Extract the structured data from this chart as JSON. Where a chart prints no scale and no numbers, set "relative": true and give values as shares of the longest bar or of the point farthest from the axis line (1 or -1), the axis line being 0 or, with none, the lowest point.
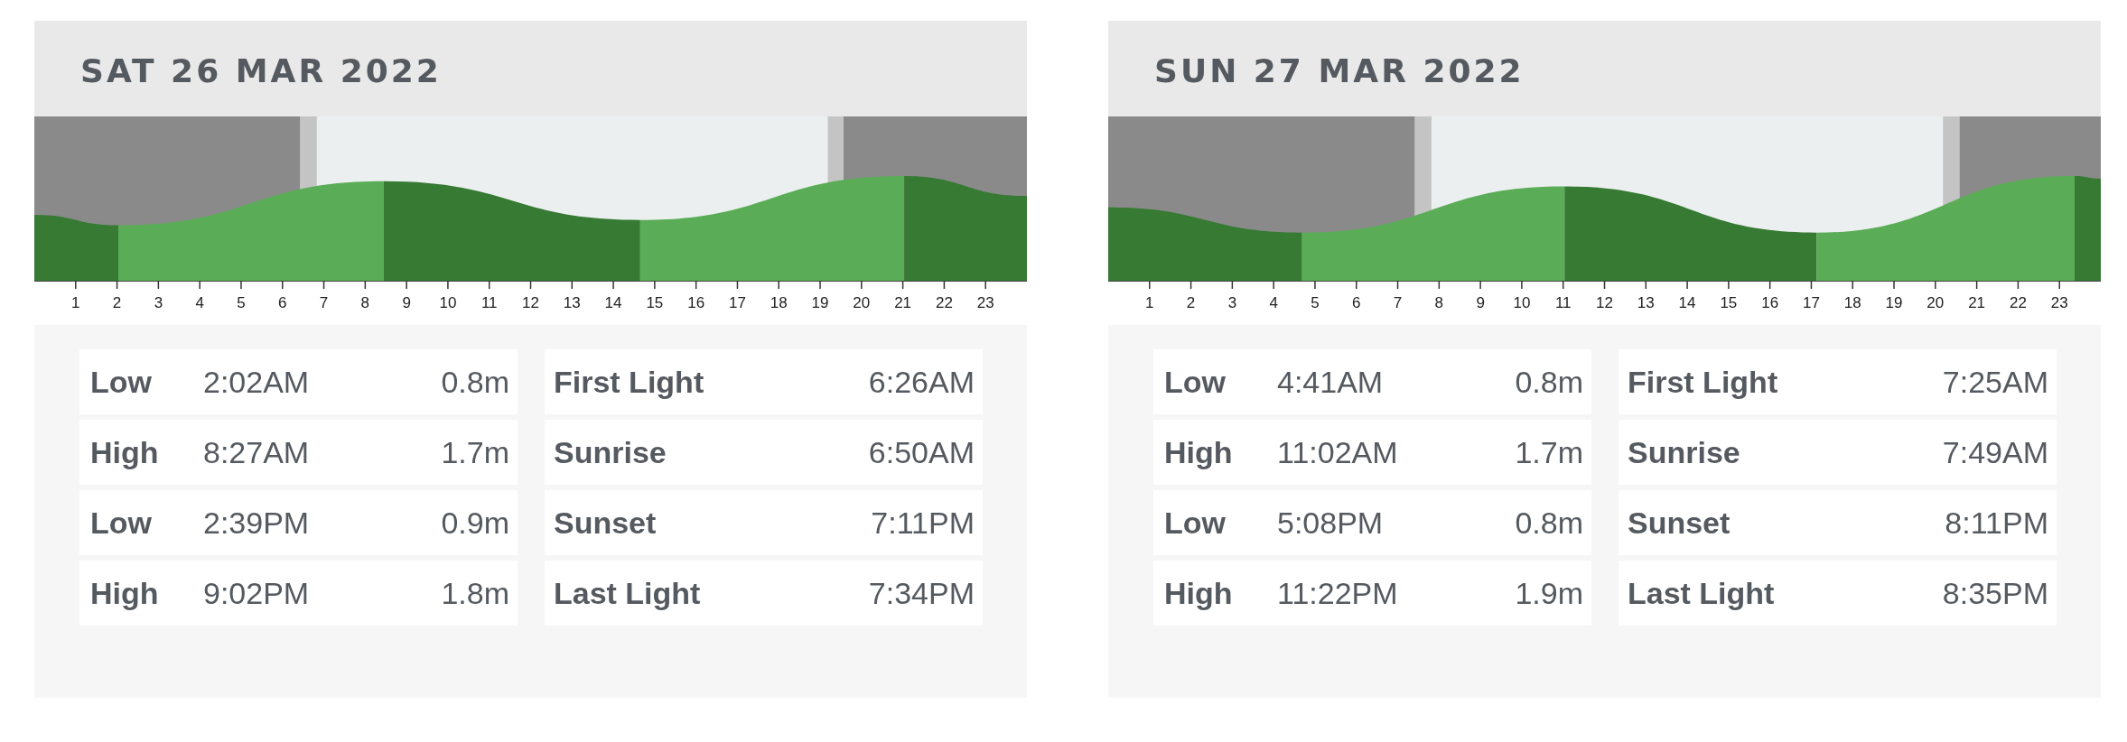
{
  "chart_data": [
    {
      "type": "area",
      "title": "SAT 26 MAR 2022",
      "relative": true,
      "xlim": [
        0,
        24
      ],
      "xticks": [
        1,
        2,
        3,
        4,
        5,
        6,
        7,
        8,
        9,
        10,
        11,
        12,
        13,
        14,
        15,
        16,
        17,
        18,
        19,
        20,
        21,
        22,
        23
      ],
      "grid": false,
      "tick_labels": "x",
      "series": [
        {
          "color": "#367a33",
          "x": [
            0,
            2.033
          ],
          "values": [
            0.63,
            0.53
          ]
        },
        {
          "color": "#5aad56",
          "x": [
            2.033,
            8.45
          ],
          "values": [
            0.53,
            0.95
          ]
        },
        {
          "color": "#367a33",
          "x": [
            8.45,
            14.65
          ],
          "values": [
            0.95,
            0.58
          ]
        },
        {
          "color": "#5aad56",
          "x": [
            14.65,
            21.033
          ],
          "values": [
            0.58,
            1
          ]
        },
        {
          "color": "#367a33",
          "x": [
            21.033,
            24
          ],
          "values": [
            1,
            0.81
          ]
        }
      ],
      "bands": [
        {
          "axis": "x",
          "from": 0,
          "to": 6.433,
          "color": "#8a8a8a"
        },
        {
          "axis": "x",
          "from": 6.433,
          "to": 6.833,
          "color": "#c4c4c4"
        },
        {
          "axis": "x",
          "from": 6.833,
          "to": 19.183,
          "color": "#eceff0"
        },
        {
          "axis": "x",
          "from": 19.183,
          "to": 19.567,
          "color": "#c4c4c4"
        },
        {
          "axis": "x",
          "from": 19.567,
          "to": 24,
          "color": "#8a8a8a"
        }
      ],
      "annotations": [
        "Low",
        "2:02AM",
        "0.8m",
        "First Light",
        "6:26AM",
        "High",
        "8:27AM",
        "1.7m",
        "Sunrise",
        "6:50AM",
        "Low",
        "2:39PM",
        "0.9m",
        "Sunset",
        "7:11PM",
        "High",
        "9:02PM",
        "1.8m",
        "Last Light",
        "7:34PM"
      ]
    },
    {
      "type": "area",
      "title": "SUN 27 MAR 2022",
      "relative": true,
      "xlim": [
        0,
        24
      ],
      "xticks": [
        1,
        2,
        3,
        4,
        5,
        6,
        7,
        8,
        9,
        10,
        11,
        12,
        13,
        14,
        15,
        16,
        17,
        18,
        19,
        20,
        21,
        22,
        23
      ],
      "grid": false,
      "tick_labels": "x",
      "series": [
        {
          "color": "#367a33",
          "x": [
            0,
            4.683
          ],
          "values": [
            0.7,
            0.46
          ]
        },
        {
          "color": "#5aad56",
          "x": [
            4.683,
            11.033
          ],
          "values": [
            0.46,
            0.9
          ]
        },
        {
          "color": "#367a33",
          "x": [
            11.033,
            17.133
          ],
          "values": [
            0.9,
            0.46
          ]
        },
        {
          "color": "#5aad56",
          "x": [
            17.133,
            23.367
          ],
          "values": [
            0.46,
            1
          ]
        },
        {
          "color": "#367a33",
          "x": [
            23.367,
            24
          ],
          "values": [
            1,
            0.975
          ]
        }
      ],
      "bands": [
        {
          "axis": "x",
          "from": 0,
          "to": 7.417,
          "color": "#8a8a8a"
        },
        {
          "axis": "x",
          "from": 7.417,
          "to": 7.817,
          "color": "#c4c4c4"
        },
        {
          "axis": "x",
          "from": 7.817,
          "to": 20.183,
          "color": "#eceff0"
        },
        {
          "axis": "x",
          "from": 20.183,
          "to": 20.583,
          "color": "#c4c4c4"
        },
        {
          "axis": "x",
          "from": 20.583,
          "to": 24,
          "color": "#8a8a8a"
        }
      ],
      "annotations": [
        "Low",
        "4:41AM",
        "0.8m",
        "First Light",
        "7:25AM",
        "High",
        "11:02AM",
        "1.7m",
        "Sunrise",
        "7:49AM",
        "Low",
        "5:08PM",
        "0.8m",
        "Sunset",
        "8:11PM",
        "High",
        "11:22PM",
        "1.9m",
        "Last Light",
        "8:35PM"
      ]
    }
  ]
}
